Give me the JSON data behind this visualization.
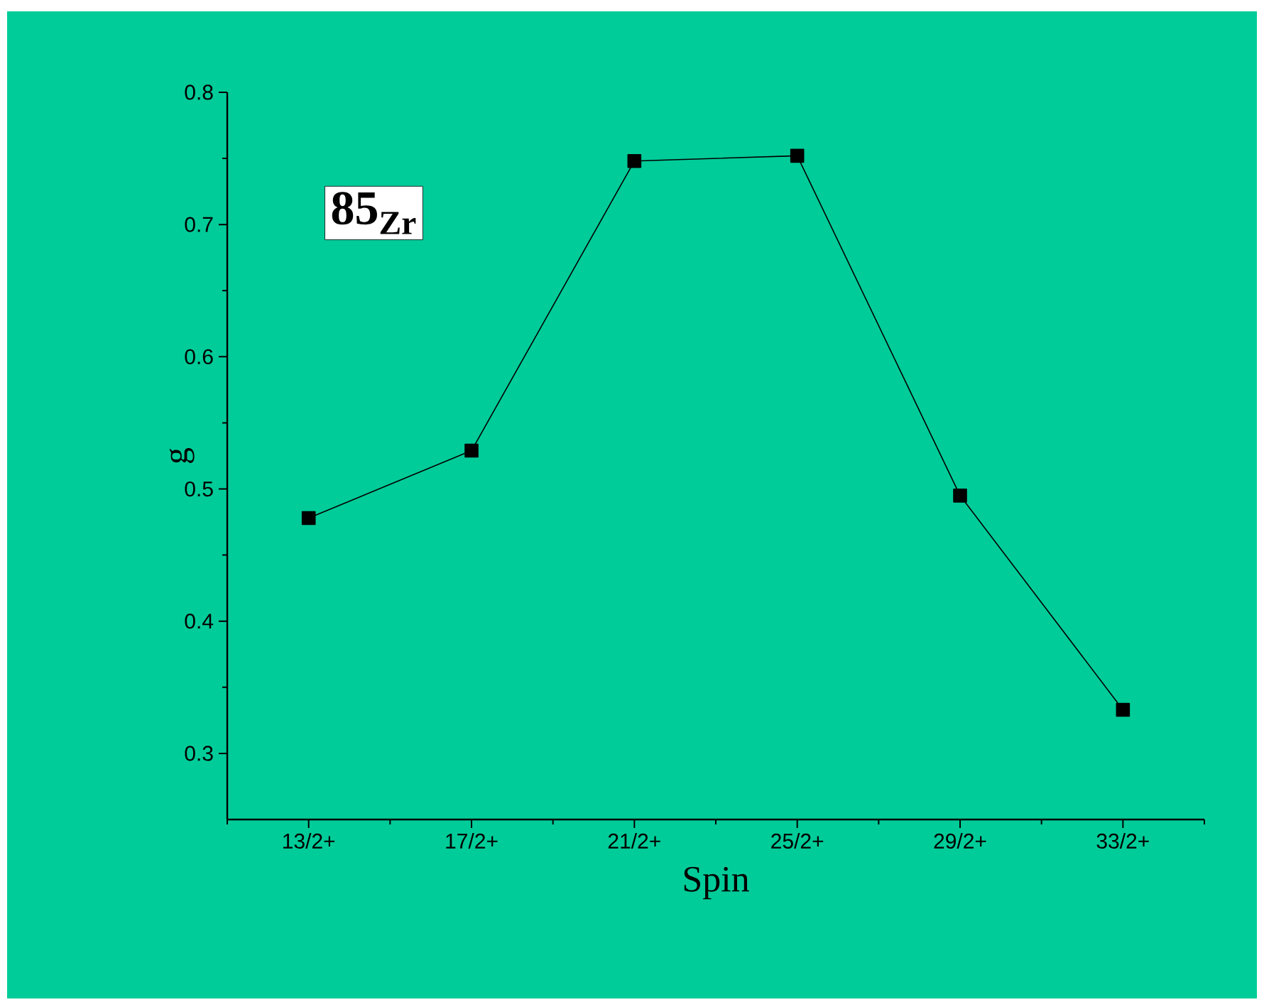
{
  "chart_data": {
    "type": "line",
    "categories": [
      "13/2+",
      "17/2+",
      "21/2+",
      "25/2+",
      "29/2+",
      "33/2+"
    ],
    "series": [
      {
        "color": "#000000",
        "values": [
          0.478,
          0.529,
          0.748,
          0.752,
          0.495,
          0.333
        ]
      }
    ],
    "xlabel": "Spin",
    "ylabel": "g",
    "ylim": [
      0.25,
      0.8
    ],
    "yticks": [
      0.3,
      0.4,
      0.5,
      0.6,
      0.7,
      0.8
    ],
    "annotations": [
      "**85$_{Zr}$**"
    ],
    "marker": "square",
    "line_style": "solid"
  }
}
